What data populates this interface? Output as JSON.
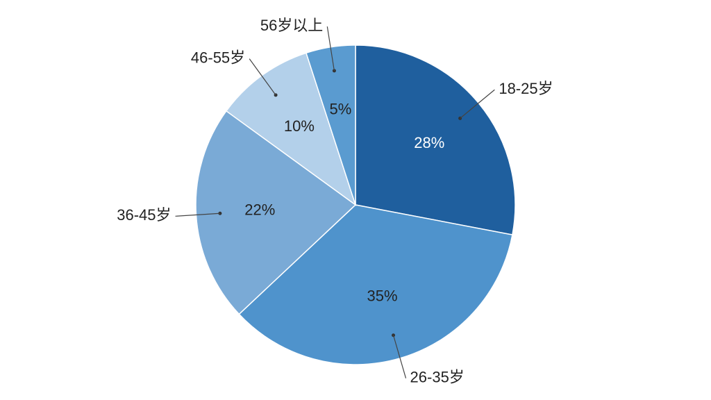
{
  "chart_data": {
    "type": "pie",
    "categories": [
      "18-25岁",
      "26-35岁",
      "36-45岁",
      "46-55岁",
      "56岁以上"
    ],
    "values": [
      28,
      35,
      22,
      10,
      5
    ],
    "value_labels": [
      "28%",
      "35%",
      "22%",
      "10%",
      "5%"
    ],
    "colors": [
      "#1f5f9e",
      "#4f93cc",
      "#7aaad6",
      "#b3d0ea",
      "#5a9bd0"
    ]
  }
}
